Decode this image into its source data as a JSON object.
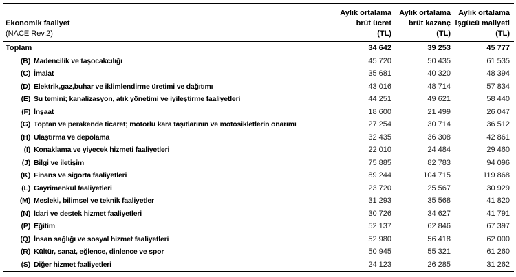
{
  "colors": {
    "background": "#ffffff",
    "text": "#000000",
    "value_text": "#1f1f1f",
    "rule": "#000000"
  },
  "table": {
    "header": {
      "left_line1": "Ekonomik faaliyet",
      "left_line2": "(NACE Rev.2)",
      "columns": [
        {
          "line1": "Aylık ortalama",
          "line2": "brüt ücret",
          "line3": "(TL)"
        },
        {
          "line1": "Aylık ortalama",
          "line2": "brüt kazanç",
          "line3": "(TL)"
        },
        {
          "line1": "Aylık ortalama",
          "line2": "işgücü maliyeti",
          "line3": "(TL)"
        }
      ]
    },
    "total_row": {
      "label": "Toplam",
      "values": [
        "34 642",
        "39 253",
        "45 777"
      ]
    },
    "rows": [
      {
        "code": "(B)",
        "label": "Madencilik ve taşocakcılığı",
        "values": [
          "45 720",
          "50 435",
          "61 535"
        ]
      },
      {
        "code": "(C)",
        "label": "İmalat",
        "values": [
          "35 681",
          "40 320",
          "48 394"
        ]
      },
      {
        "code": "(D)",
        "label": "Elektrik,gaz,buhar ve iklimlendirme üretimi ve dağıtımı",
        "values": [
          "43 016",
          "48 714",
          "57 834"
        ]
      },
      {
        "code": "(E)",
        "label": "Su temini; kanalizasyon, atık yönetimi ve iyileştirme faaliyetleri",
        "values": [
          "44 251",
          "49 621",
          "58 440"
        ]
      },
      {
        "code": "(F)",
        "label": "İnşaat",
        "values": [
          "18 600",
          "21 499",
          "26 047"
        ]
      },
      {
        "code": "(G)",
        "label": "Toptan ve perakende ticaret; motorlu kara taşıtlarının ve motosikletlerin onarımı",
        "values": [
          "27 254",
          "30 714",
          "36 512"
        ]
      },
      {
        "code": "(H)",
        "label": "Ulaştırma ve depolama",
        "values": [
          "32 435",
          "36 308",
          "42 861"
        ]
      },
      {
        "code": "(I)",
        "label": "Konaklama ve yiyecek hizmeti faaliyetleri",
        "values": [
          "22 010",
          "24 484",
          "29 460"
        ]
      },
      {
        "code": "(J)",
        "label": "Bilgi ve iletişim",
        "values": [
          "75 885",
          "82 783",
          "94 096"
        ]
      },
      {
        "code": "(K)",
        "label": "Finans ve sigorta faaliyetleri",
        "values": [
          "89 244",
          "104 715",
          "119 868"
        ]
      },
      {
        "code": "(L)",
        "label": "Gayrimenkul faaliyetleri",
        "values": [
          "23 720",
          "25 567",
          "30 929"
        ]
      },
      {
        "code": "(M)",
        "label": "Mesleki, bilimsel ve teknik faaliyetler",
        "values": [
          "31 293",
          "35 568",
          "41 820"
        ]
      },
      {
        "code": "(N)",
        "label": "İdari ve destek hizmet faaliyetleri",
        "values": [
          "30 726",
          "34 627",
          "41 791"
        ]
      },
      {
        "code": "(P)",
        "label": "Eğitim",
        "values": [
          "52 137",
          "62 846",
          "67 397"
        ]
      },
      {
        "code": "(Q)",
        "label": "İnsan sağlığı ve sosyal hizmet faaliyetleri",
        "values": [
          "52 980",
          "56 418",
          "62 000"
        ]
      },
      {
        "code": "(R)",
        "label": "Kültür, sanat, eğlence, dinlence ve spor",
        "values": [
          "50 945",
          "55 321",
          "61 260"
        ]
      },
      {
        "code": "(S)",
        "label": "Diğer hizmet faaliyetleri",
        "values": [
          "24 123",
          "26 285",
          "31 262"
        ]
      }
    ]
  }
}
